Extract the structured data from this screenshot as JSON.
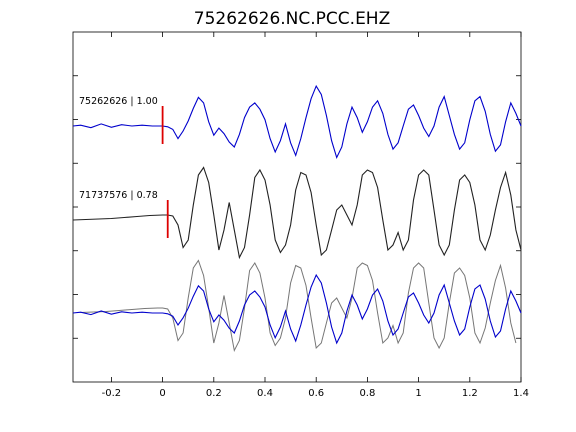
{
  "chart_data": {
    "type": "line",
    "title": "75262626.NC.PCC.EHZ",
    "xlabel": "",
    "ylabel": "",
    "xlim": [
      -0.35,
      1.4
    ],
    "x_ticks": [
      -0.2,
      0,
      0.2,
      0.4,
      0.6,
      0.8,
      1,
      1.2,
      1.4
    ],
    "x_tick_labels": [
      "-0.2",
      "0",
      "0.2",
      "0.4",
      "0.6",
      "0.8",
      "1",
      "1.2",
      "1.4"
    ],
    "grid": false,
    "legend": "none",
    "colors": {
      "primary": "#0000cc",
      "reference": "#222222",
      "reference_overlay": "#777777",
      "pick": "#dd0000"
    },
    "traces": [
      {
        "label": "75262626 | 1.00",
        "color": "#0000cc",
        "pick_time": 0.0,
        "x": [
          -0.35,
          -0.32,
          -0.28,
          -0.24,
          -0.2,
          -0.16,
          -0.12,
          -0.08,
          -0.04,
          0.0,
          0.02,
          0.04,
          0.06,
          0.08,
          0.1,
          0.12,
          0.14,
          0.16,
          0.18,
          0.2,
          0.22,
          0.24,
          0.26,
          0.28,
          0.3,
          0.32,
          0.34,
          0.36,
          0.38,
          0.4,
          0.42,
          0.44,
          0.46,
          0.48,
          0.5,
          0.52,
          0.54,
          0.56,
          0.58,
          0.6,
          0.62,
          0.64,
          0.66,
          0.68,
          0.7,
          0.72,
          0.74,
          0.76,
          0.78,
          0.8,
          0.82,
          0.84,
          0.86,
          0.88,
          0.9,
          0.92,
          0.94,
          0.96,
          0.98,
          1.0,
          1.02,
          1.04,
          1.06,
          1.08,
          1.1,
          1.12,
          1.14,
          1.16,
          1.18,
          1.2,
          1.22,
          1.24,
          1.26,
          1.28,
          1.3,
          1.32,
          1.34,
          1.36,
          1.38,
          1.4
        ],
        "y": [
          0.0,
          0.02,
          -0.04,
          0.05,
          -0.03,
          0.03,
          0.0,
          0.02,
          0.0,
          0.0,
          -0.02,
          -0.08,
          -0.3,
          -0.12,
          0.12,
          0.42,
          0.68,
          0.55,
          0.1,
          -0.22,
          -0.05,
          -0.18,
          -0.38,
          -0.5,
          -0.2,
          0.2,
          0.45,
          0.55,
          0.4,
          0.15,
          -0.3,
          -0.62,
          -0.35,
          0.05,
          -0.4,
          -0.7,
          -0.3,
          0.2,
          0.65,
          0.95,
          0.75,
          0.25,
          -0.35,
          -0.75,
          -0.5,
          0.05,
          0.45,
          0.2,
          -0.15,
          0.1,
          0.45,
          0.6,
          0.3,
          -0.2,
          -0.55,
          -0.4,
          0.0,
          0.4,
          0.5,
          0.25,
          -0.05,
          -0.25,
          0.0,
          0.45,
          0.7,
          0.25,
          -0.2,
          -0.55,
          -0.4,
          0.15,
          0.6,
          0.7,
          0.35,
          -0.2,
          -0.6,
          -0.45,
          0.1,
          0.55,
          0.3,
          0.0
        ]
      },
      {
        "label": "71737576 | 0.78",
        "color": "#222222",
        "pick_time": 0.02,
        "x": [
          -0.35,
          -0.3,
          -0.25,
          -0.2,
          -0.15,
          -0.1,
          -0.05,
          0.0,
          0.02,
          0.04,
          0.06,
          0.08,
          0.1,
          0.12,
          0.14,
          0.16,
          0.18,
          0.2,
          0.22,
          0.24,
          0.26,
          0.28,
          0.3,
          0.32,
          0.34,
          0.36,
          0.38,
          0.4,
          0.42,
          0.44,
          0.46,
          0.48,
          0.5,
          0.52,
          0.54,
          0.56,
          0.58,
          0.6,
          0.62,
          0.64,
          0.66,
          0.68,
          0.7,
          0.72,
          0.74,
          0.76,
          0.78,
          0.8,
          0.82,
          0.84,
          0.86,
          0.88,
          0.9,
          0.92,
          0.94,
          0.96,
          0.98,
          1.0,
          1.02,
          1.04,
          1.06,
          1.08,
          1.1,
          1.12,
          1.14,
          1.16,
          1.18,
          1.2,
          1.22,
          1.24,
          1.26,
          1.28,
          1.3,
          1.32,
          1.34,
          1.36,
          1.38,
          1.4
        ],
        "y": [
          0.0,
          0.01,
          0.02,
          0.03,
          0.05,
          0.07,
          0.09,
          0.1,
          0.1,
          0.08,
          -0.1,
          -0.55,
          -0.4,
          0.3,
          0.9,
          1.05,
          0.75,
          0.1,
          -0.6,
          -0.2,
          0.35,
          -0.2,
          -0.75,
          -0.55,
          0.1,
          0.85,
          1.0,
          0.8,
          0.3,
          -0.4,
          -0.65,
          -0.5,
          -0.1,
          0.6,
          0.95,
          0.9,
          0.55,
          -0.1,
          -0.7,
          -0.6,
          -0.2,
          0.2,
          0.3,
          0.1,
          -0.1,
          0.3,
          0.9,
          1.0,
          0.95,
          0.65,
          0.0,
          -0.6,
          -0.5,
          -0.25,
          -0.6,
          -0.4,
          0.4,
          0.9,
          1.0,
          0.9,
          0.2,
          -0.5,
          -0.7,
          -0.5,
          0.2,
          0.8,
          0.9,
          0.75,
          0.3,
          -0.4,
          -0.6,
          -0.3,
          0.2,
          0.65,
          0.95,
          0.5,
          -0.2,
          -0.6
        ]
      }
    ]
  }
}
